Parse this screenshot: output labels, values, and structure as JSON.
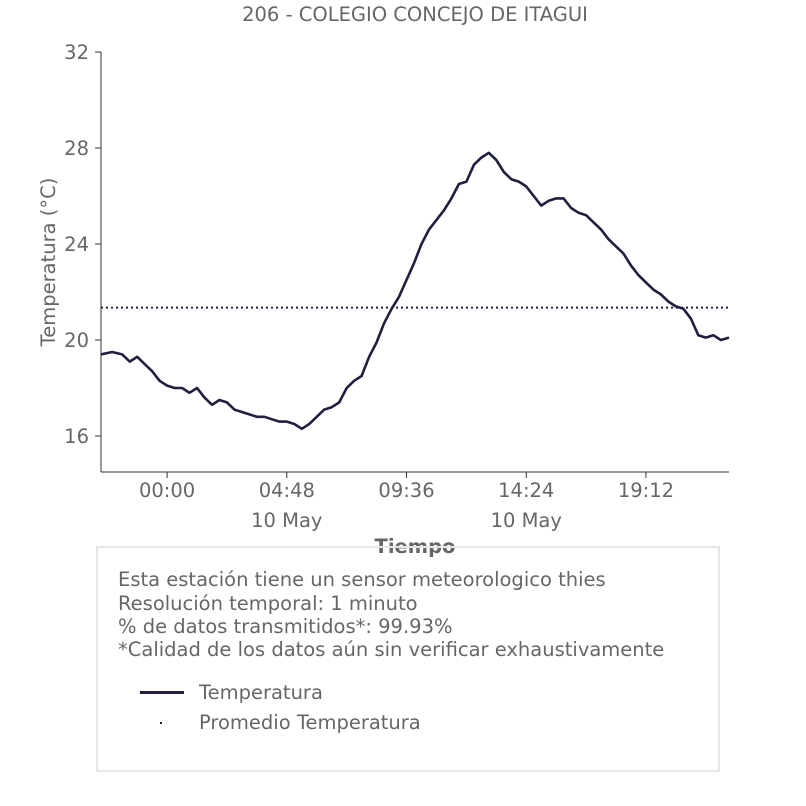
{
  "chart_data": {
    "type": "line",
    "title": "206 - COLEGIO CONCEJO DE ITAGUI",
    "xlabel": "Tiempo",
    "ylabel": "Temperatura (°C)",
    "ylim": [
      14.5,
      32
    ],
    "yticks": [
      16,
      20,
      24,
      28,
      32
    ],
    "xlim": [
      -2.65,
      22.53
    ],
    "xticks": [
      {
        "hour": 0.0,
        "label": "00:00",
        "sublabel": ""
      },
      {
        "hour": 4.8,
        "label": "04:48",
        "sublabel": "10 May"
      },
      {
        "hour": 9.6,
        "label": "09:36",
        "sublabel": ""
      },
      {
        "hour": 14.4,
        "label": "14:24",
        "sublabel": "10 May"
      },
      {
        "hour": 19.2,
        "label": "19:12",
        "sublabel": ""
      }
    ],
    "grid": false,
    "series": [
      {
        "name": "Temperatura",
        "color": "#1f1f3f",
        "x": [
          -2.65,
          -2.2,
          -1.8,
          -1.5,
          -1.2,
          -0.9,
          -0.6,
          -0.3,
          0.0,
          0.3,
          0.6,
          0.9,
          1.2,
          1.5,
          1.8,
          2.1,
          2.4,
          2.7,
          3.0,
          3.3,
          3.6,
          3.9,
          4.2,
          4.5,
          4.8,
          5.1,
          5.4,
          5.7,
          6.0,
          6.3,
          6.6,
          6.9,
          7.2,
          7.5,
          7.8,
          8.1,
          8.4,
          8.7,
          9.0,
          9.3,
          9.6,
          9.9,
          10.2,
          10.5,
          10.8,
          11.1,
          11.4,
          11.7,
          12.0,
          12.3,
          12.6,
          12.9,
          13.2,
          13.5,
          13.8,
          14.1,
          14.4,
          14.7,
          15.0,
          15.3,
          15.6,
          15.9,
          16.2,
          16.5,
          16.8,
          17.1,
          17.4,
          17.7,
          18.0,
          18.3,
          18.6,
          18.9,
          19.2,
          19.5,
          19.8,
          20.1,
          20.4,
          20.7,
          21.0,
          21.3,
          21.6,
          21.9,
          22.2,
          22.53
        ],
        "values": [
          19.4,
          19.5,
          19.4,
          19.1,
          19.3,
          19.0,
          18.7,
          18.3,
          18.1,
          18.0,
          18.0,
          17.8,
          18.0,
          17.6,
          17.3,
          17.5,
          17.4,
          17.1,
          17.0,
          16.9,
          16.8,
          16.8,
          16.7,
          16.6,
          16.6,
          16.5,
          16.3,
          16.5,
          16.8,
          17.1,
          17.2,
          17.4,
          18.0,
          18.3,
          18.5,
          19.3,
          19.9,
          20.7,
          21.3,
          21.8,
          22.5,
          23.2,
          24.0,
          24.6,
          25.0,
          25.4,
          25.9,
          26.5,
          26.6,
          27.3,
          27.6,
          27.8,
          27.5,
          27.0,
          26.7,
          26.6,
          26.4,
          26.0,
          25.6,
          25.8,
          25.9,
          25.9,
          25.5,
          25.3,
          25.2,
          24.9,
          24.6,
          24.2,
          23.9,
          23.6,
          23.1,
          22.7,
          22.4,
          22.1,
          21.9,
          21.6,
          21.4,
          21.3,
          20.9,
          20.2,
          20.1,
          20.2,
          20.0,
          20.1
        ]
      },
      {
        "name": "Promedio Temperatura",
        "color": "#1f1f3f",
        "style": "dotted",
        "values": [
          21.35
        ]
      }
    ]
  },
  "info": {
    "lines": [
      "Esta estación tiene un sensor meteorologico thies",
      "Resolución temporal: 1 minuto",
      "% de datos transmitidos*: 99.93%",
      "*Calidad de los datos aún sin verificar exhaustivamente"
    ],
    "legend": [
      "Temperatura",
      "Promedio Temperatura"
    ]
  }
}
